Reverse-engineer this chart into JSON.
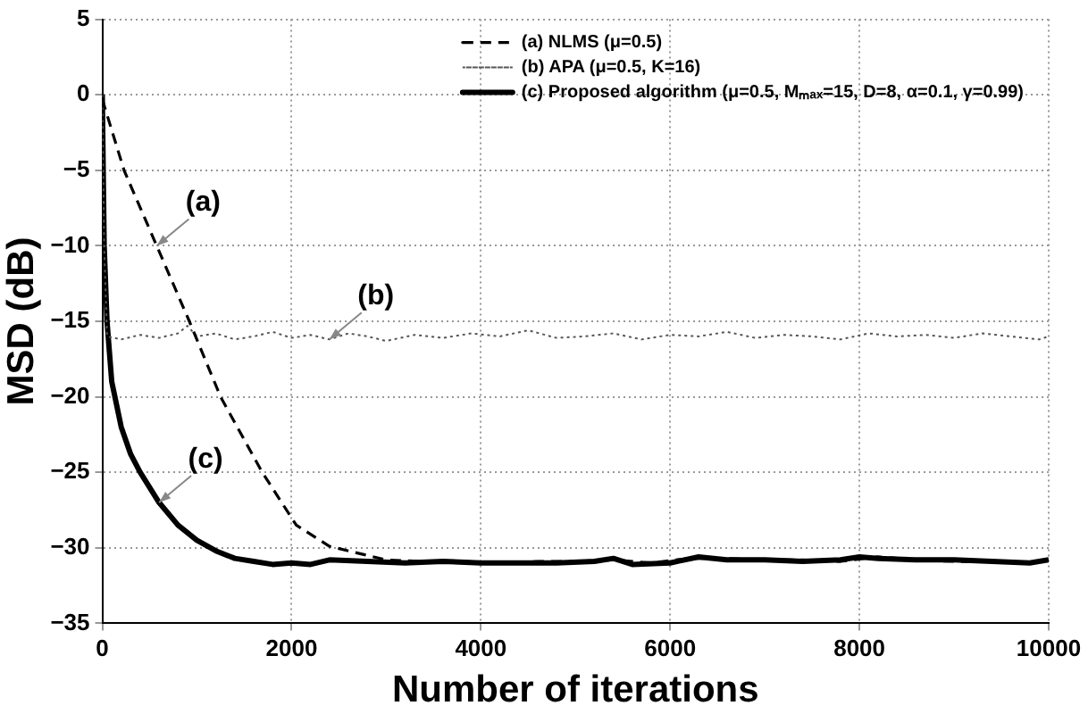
{
  "chart_data": {
    "type": "line",
    "xlabel": "Number of iterations",
    "ylabel": "MSD (dB)",
    "xlim": [
      0,
      10000
    ],
    "xticks": [
      0,
      2000,
      4000,
      6000,
      8000,
      10000
    ],
    "ylim": [
      -35,
      5
    ],
    "yticks": [
      -35,
      -30,
      -25,
      -20,
      -15,
      -10,
      -5,
      0,
      5
    ],
    "grid": true,
    "legend": "top right",
    "marker": "none",
    "series": [
      {
        "name": "(a) NLMS (μ=0.5)",
        "color": "#000000",
        "line_style": "dashed",
        "x": [
          0,
          230,
          575,
          920,
          1250,
          1690,
          2050,
          2400,
          2800,
          3000,
          3400,
          3800,
          4200,
          4600,
          5000,
          5400,
          5800,
          6200,
          6600,
          7000,
          7400,
          7800,
          8200,
          8600,
          9000,
          9400,
          9800,
          10000
        ],
        "values": [
          -0.3,
          -5,
          -10,
          -15,
          -20,
          -25,
          -28.5,
          -29.9,
          -30.5,
          -30.8,
          -30.9,
          -30.9,
          -31.0,
          -30.9,
          -30.9,
          -30.8,
          -31.0,
          -30.7,
          -30.7,
          -30.8,
          -30.8,
          -30.9,
          -30.6,
          -30.8,
          -30.9,
          -30.9,
          -31.0,
          -30.8
        ]
      },
      {
        "name": "(b) APA (μ=0.5, K=16)",
        "color": "#555555",
        "line_style": "dotted",
        "x": [
          0,
          20,
          50,
          200,
          400,
          600,
          800,
          900,
          1000,
          1200,
          1400,
          1600,
          1800,
          2000,
          2200,
          2400,
          2600,
          2800,
          3000,
          3300,
          3600,
          3900,
          4200,
          4500,
          4800,
          5100,
          5400,
          5700,
          6000,
          6300,
          6600,
          6900,
          7200,
          7500,
          7800,
          8100,
          8400,
          8700,
          9000,
          9300,
          9600,
          9900,
          10000
        ],
        "values": [
          0,
          -10,
          -16.0,
          -16.2,
          -15.9,
          -16.1,
          -15.8,
          -15.3,
          -16.0,
          -15.8,
          -16.2,
          -16.0,
          -15.7,
          -16.1,
          -15.9,
          -16.2,
          -15.8,
          -16.0,
          -16.3,
          -15.9,
          -16.1,
          -15.8,
          -16.0,
          -15.6,
          -16.1,
          -16.0,
          -15.8,
          -16.2,
          -15.9,
          -16.0,
          -15.7,
          -16.1,
          -15.9,
          -16.0,
          -16.2,
          -15.8,
          -16.0,
          -15.9,
          -16.1,
          -15.8,
          -16.0,
          -16.2,
          -16.0
        ]
      },
      {
        "name": "(c) Proposed algorithm (μ=0.5, Mₘₐₓ=15, D=8, α=0.1, γ=0.99)",
        "color": "#000000",
        "line_style": "solid",
        "x": [
          0,
          20,
          50,
          100,
          200,
          300,
          400,
          600,
          800,
          1000,
          1200,
          1400,
          1600,
          1800,
          2000,
          2200,
          2400,
          2800,
          3200,
          3600,
          4000,
          4400,
          4800,
          5200,
          5400,
          5600,
          6000,
          6300,
          6600,
          7000,
          7400,
          7800,
          8000,
          8200,
          8600,
          9000,
          9400,
          9800,
          10000
        ],
        "values": [
          0,
          -10,
          -15,
          -19,
          -22,
          -23.8,
          -25,
          -27,
          -28.5,
          -29.5,
          -30.2,
          -30.7,
          -30.9,
          -31.1,
          -31.0,
          -31.1,
          -30.8,
          -30.9,
          -31.0,
          -30.9,
          -31.0,
          -31.0,
          -31.0,
          -30.9,
          -30.7,
          -31.1,
          -31.0,
          -30.6,
          -30.8,
          -30.8,
          -30.9,
          -30.8,
          -30.6,
          -30.7,
          -30.8,
          -30.8,
          -30.9,
          -31.0,
          -30.8
        ]
      }
    ],
    "annotations": [
      {
        "text": "(a)",
        "x": 575,
        "y": -10
      },
      {
        "text": "(b)",
        "x": 2400,
        "y": -16.2
      },
      {
        "text": "(c)",
        "x": 600,
        "y": -27
      }
    ]
  }
}
